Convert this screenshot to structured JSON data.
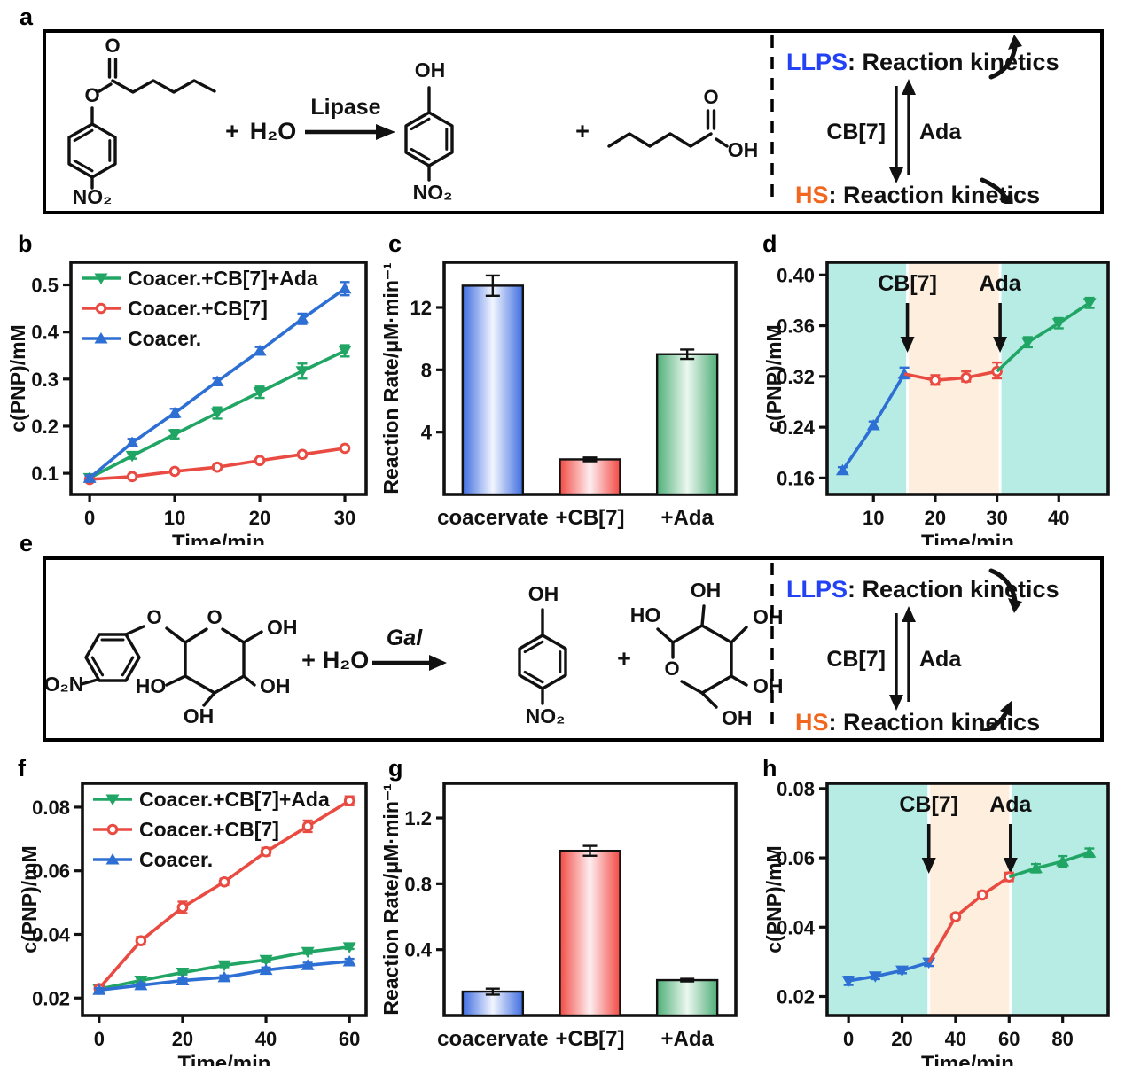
{
  "panel_letters": {
    "a": "a",
    "b": "b",
    "c": "c",
    "d": "d",
    "e": "e",
    "f": "f",
    "g": "g",
    "h": "h"
  },
  "colors": {
    "llps": "#2442f5",
    "hs": "#f2671f",
    "line_blue": "#2e6fd4",
    "line_red": "#e94b42",
    "line_green": "#21a565",
    "band_cyan": "#b7ece5",
    "band_peach": "#fdeedd"
  },
  "scheme": {
    "llps": "LLPS",
    "llps_rest": ": Reaction kinetics",
    "cb7": "CB[7]",
    "ada": "Ada",
    "hs": "HS",
    "hs_rest": ": Reaction kinetics"
  },
  "panel_a": {
    "labels": {
      "o": "O",
      "oh": "OH",
      "no2": "NO₂",
      "plus": "+",
      "water": "H₂O",
      "enzyme": "Lipase"
    }
  },
  "panel_e": {
    "labels": {
      "o": "O",
      "oh": "OH",
      "ho": "HO",
      "o2n": "O₂N",
      "no2": "NO₂",
      "plus": "+",
      "water": "H₂O",
      "enzyme": "Gal"
    }
  },
  "chart_data": [
    {
      "id": "b",
      "type": "line",
      "xlabel": "Time/min",
      "ylabel": "c(PNP)/mM",
      "xticks": [
        0,
        10,
        20,
        30
      ],
      "xticklabels": [
        "0",
        "10",
        "20",
        "30"
      ],
      "xlim": [
        -2.2,
        32.5
      ],
      "yticks": [
        0.1,
        0.2,
        0.3,
        0.4,
        0.5
      ],
      "yticklabels": [
        "0.1",
        "0.2",
        "0.3",
        "0.4",
        "0.5"
      ],
      "ylim": [
        0.055,
        0.548
      ],
      "series": [
        {
          "name": "Coacer.+CB[7]+Ada",
          "color": "#21a565",
          "marker": "tri-down",
          "x": [
            0,
            5,
            10,
            15,
            20,
            25,
            30
          ],
          "y": [
            0.09,
            0.137,
            0.183,
            0.228,
            0.272,
            0.317,
            0.36
          ],
          "err": [
            0.004,
            0.006,
            0.009,
            0.012,
            0.012,
            0.016,
            0.012
          ]
        },
        {
          "name": "Coacer.+CB[7]",
          "color": "#e94b42",
          "marker": "circle",
          "x": [
            0,
            5,
            10,
            15,
            20,
            25,
            30
          ],
          "y": [
            0.087,
            0.093,
            0.104,
            0.113,
            0.127,
            0.14,
            0.153
          ],
          "err": [
            0.004,
            0.003,
            0.003,
            0.004,
            0.003,
            0.004,
            0.005
          ]
        },
        {
          "name": "Coacer.",
          "color": "#2e6fd4",
          "marker": "tri-up",
          "x": [
            0,
            5,
            10,
            15,
            20,
            25,
            30
          ],
          "y": [
            0.09,
            0.165,
            0.228,
            0.295,
            0.36,
            0.428,
            0.492
          ],
          "err": [
            0.005,
            0.008,
            0.009,
            0.006,
            0.008,
            0.011,
            0.014
          ]
        }
      ]
    },
    {
      "id": "c",
      "type": "bar",
      "ylabel": "Reaction Rate/μM·min⁻¹",
      "categories": [
        "coacervate",
        "+CB[7]",
        "+Ada"
      ],
      "values": [
        13.4,
        2.25,
        9.0
      ],
      "errors": [
        0.65,
        0.12,
        0.3
      ],
      "bar_colors": [
        "#3e6ce0",
        "#f24b45",
        "#4fae78"
      ],
      "bar_center_colors": [
        "#f2f6ff",
        "#feeef0",
        "#ecf8f0"
      ],
      "yticks": [
        4,
        8,
        12
      ],
      "yticklabels": [
        "4",
        "8",
        "12"
      ],
      "ylim": [
        0,
        14.9
      ]
    },
    {
      "id": "d",
      "type": "line",
      "xlabel": "Time/min",
      "ylabel": "c(PNP)/mM",
      "legend": false,
      "xticks": [
        10,
        20,
        30,
        40
      ],
      "xticklabels": [
        "10",
        "20",
        "30",
        "40"
      ],
      "xlim": [
        2.5,
        48
      ],
      "yticks": [
        0.16,
        0.24,
        0.32,
        0.36,
        0.4
      ],
      "yticklabels": [
        "0.16",
        "0.24",
        "0.32",
        "0.36",
        "0.40"
      ],
      "ylim": [
        0.134,
        0.41
      ],
      "bands": [
        {
          "x0": 2.5,
          "x1": 48,
          "color": "#b7ece5"
        },
        {
          "x0": 15.5,
          "x1": 30.5,
          "color": "#fdeedd"
        }
      ],
      "band_gaps": [
        15.5,
        30.5
      ],
      "annotations": [
        {
          "text": "CB[7]",
          "x": 15.5
        },
        {
          "text": "Ada",
          "x": 30.5
        }
      ],
      "series": [
        {
          "color": "#2e6fd4",
          "marker": "tri-up",
          "x": [
            5,
            10,
            15
          ],
          "y": [
            0.172,
            0.243,
            0.322
          ],
          "err": [
            0.005,
            0.006,
            0.005
          ]
        },
        {
          "color": "#e94b42",
          "marker": "circle",
          "connect_from": [
            15,
            0.322
          ],
          "x": [
            20,
            25,
            30
          ],
          "y": [
            0.314,
            0.318,
            0.324
          ],
          "err": [
            0.007,
            0.006,
            0.007
          ]
        },
        {
          "color": "#21a565",
          "marker": "tri-down",
          "connect_from": [
            30,
            0.324
          ],
          "x": [
            35,
            40,
            45
          ],
          "y": [
            0.347,
            0.362,
            0.378
          ],
          "err": [
            0.004,
            0.004,
            0.004
          ]
        }
      ]
    },
    {
      "id": "f",
      "type": "line",
      "xlabel": "Time/min",
      "ylabel": "c(PNP)/mM",
      "xticks": [
        0,
        20,
        40,
        60
      ],
      "xticklabels": [
        "0",
        "20",
        "40",
        "60"
      ],
      "xlim": [
        -4,
        64
      ],
      "yticks": [
        0.02,
        0.04,
        0.06,
        0.08
      ],
      "yticklabels": [
        "0.02",
        "0.04",
        "0.06",
        "0.08"
      ],
      "ylim": [
        0.0145,
        0.0875
      ],
      "series": [
        {
          "name": "Coacer.+CB[7]+Ada",
          "color": "#21a565",
          "marker": "tri-down",
          "x": [
            0,
            10,
            20,
            30,
            40,
            50,
            60
          ],
          "y": [
            0.0228,
            0.0255,
            0.028,
            0.0303,
            0.032,
            0.0345,
            0.036
          ],
          "err": [
            0.0005,
            0.0007,
            0.0006,
            0.0006,
            0.0007,
            0.0006,
            0.0006
          ]
        },
        {
          "name": "Coacer.+CB[7]",
          "color": "#e94b42",
          "marker": "circle",
          "x": [
            0,
            10,
            20,
            30,
            40,
            50,
            60
          ],
          "y": [
            0.023,
            0.038,
            0.0485,
            0.0565,
            0.066,
            0.074,
            0.082
          ],
          "err": [
            0.0008,
            0.0012,
            0.0018,
            0.001,
            0.0012,
            0.0018,
            0.0014
          ]
        },
        {
          "name": "Coacer.",
          "color": "#2e6fd4",
          "marker": "tri-up",
          "x": [
            0,
            10,
            20,
            30,
            40,
            50,
            60
          ],
          "y": [
            0.0225,
            0.024,
            0.0255,
            0.0265,
            0.0288,
            0.0303,
            0.0315
          ],
          "err": [
            0.0006,
            0.0006,
            0.0006,
            0.0006,
            0.0008,
            0.0008,
            0.0008
          ]
        }
      ]
    },
    {
      "id": "g",
      "type": "bar",
      "ylabel": "Reaction Rate/μM·min⁻¹",
      "categories": [
        "coacervate",
        "+CB[7]",
        "+Ada"
      ],
      "values": [
        0.145,
        1.0,
        0.215
      ],
      "errors": [
        0.018,
        0.03,
        0.008
      ],
      "bar_colors": [
        "#3e6ce0",
        "#f24b45",
        "#4fae78"
      ],
      "bar_center_colors": [
        "#f2f6ff",
        "#feeef0",
        "#ecf8f0"
      ],
      "yticks": [
        0.4,
        0.8,
        1.2
      ],
      "yticklabels": [
        "0.4",
        "0.8",
        "1.2"
      ],
      "ylim": [
        0,
        1.41
      ]
    },
    {
      "id": "h",
      "type": "line",
      "xlabel": "Time/min",
      "ylabel": "c(PNP)/mM",
      "legend": false,
      "xticks": [
        0,
        20,
        40,
        60,
        80
      ],
      "xticklabels": [
        "0",
        "20",
        "40",
        "60",
        "80"
      ],
      "xlim": [
        -8,
        97
      ],
      "yticks": [
        0.02,
        0.04,
        0.06,
        0.08
      ],
      "yticklabels": [
        "0.02",
        "0.04",
        "0.06",
        "0.08"
      ],
      "ylim": [
        0.0145,
        0.0815
      ],
      "bands": [
        {
          "x0": -8,
          "x1": 97,
          "color": "#b7ece5"
        },
        {
          "x0": 30,
          "x1": 60.5,
          "color": "#fdeedd"
        }
      ],
      "band_gaps": [
        30,
        60.5
      ],
      "annotations": [
        {
          "text": "CB[7]",
          "x": 30
        },
        {
          "text": "Ada",
          "x": 60.5
        }
      ],
      "series": [
        {
          "color": "#2e6fd4",
          "marker": "tri-down",
          "x": [
            0,
            10,
            20,
            30
          ],
          "y": [
            0.0245,
            0.0258,
            0.0275,
            0.0298
          ],
          "err": [
            0.0012,
            0.0008,
            0.0008,
            0.001
          ]
        },
        {
          "color": "#e94b42",
          "marker": "circle",
          "connect_from": [
            30,
            0.0298
          ],
          "x": [
            40,
            50,
            60
          ],
          "y": [
            0.043,
            0.0493,
            0.0545
          ],
          "err": [
            0.0008,
            0.001,
            0.0012
          ]
        },
        {
          "color": "#21a565",
          "marker": "tri-up",
          "connect_from": [
            60,
            0.0545
          ],
          "x": [
            70,
            80,
            90
          ],
          "y": [
            0.057,
            0.059,
            0.0615
          ],
          "err": [
            0.0012,
            0.0015,
            0.0012
          ]
        }
      ]
    }
  ]
}
